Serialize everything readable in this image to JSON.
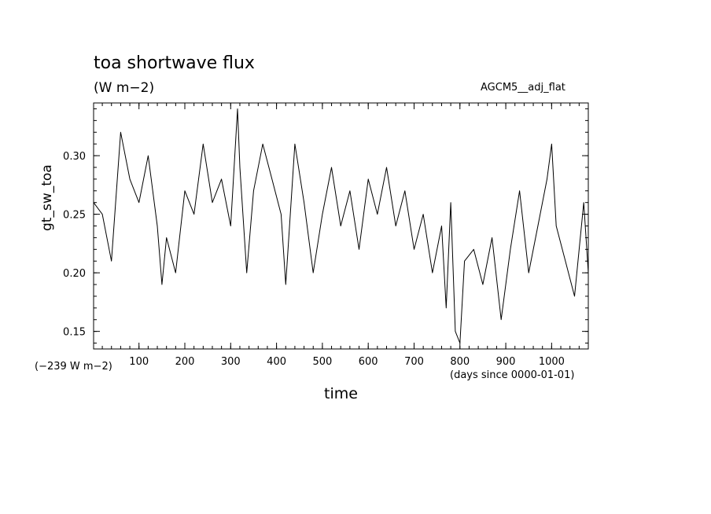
{
  "chart_data": {
    "type": "line",
    "title": "toa shortwave flux",
    "subtitle": "(W m−2)",
    "run_label": "AGCM5__adj_flat",
    "ylabel": "gt_sw_toa",
    "xlabel": "time",
    "x_units": "(days since 0000-01-01)",
    "y_offset_note": "(−239 W m−2)",
    "xlim": [
      1,
      1080
    ],
    "ylim": [
      0.135,
      0.345
    ],
    "x_ticks": [
      100,
      200,
      300,
      400,
      500,
      600,
      700,
      800,
      900,
      1000
    ],
    "x_tick_labels": [
      "100",
      "200",
      "300",
      "400",
      "500",
      "600",
      "700",
      "800",
      "900",
      "1000"
    ],
    "y_ticks": [
      0.15,
      0.2,
      0.25,
      0.3
    ],
    "y_tick_labels": [
      "0.15",
      "0.20",
      "0.25",
      "0.30"
    ],
    "grid": false,
    "series": [
      {
        "line_color": "#000000",
        "x": [
          1,
          20,
          40,
          60,
          80,
          100,
          120,
          140,
          150,
          160,
          180,
          200,
          220,
          240,
          260,
          280,
          300,
          315,
          320,
          335,
          350,
          370,
          390,
          410,
          420,
          440,
          460,
          480,
          500,
          520,
          540,
          560,
          580,
          600,
          620,
          640,
          660,
          680,
          700,
          720,
          740,
          760,
          770,
          780,
          790,
          800,
          810,
          830,
          850,
          870,
          890,
          910,
          930,
          950,
          970,
          990,
          1000,
          1010,
          1030,
          1050,
          1070,
          1080
        ],
        "y": [
          0.26,
          0.25,
          0.21,
          0.32,
          0.28,
          0.26,
          0.3,
          0.24,
          0.19,
          0.23,
          0.2,
          0.27,
          0.25,
          0.31,
          0.26,
          0.28,
          0.24,
          0.34,
          0.29,
          0.2,
          0.27,
          0.31,
          0.28,
          0.25,
          0.19,
          0.31,
          0.26,
          0.2,
          0.25,
          0.29,
          0.24,
          0.27,
          0.22,
          0.28,
          0.25,
          0.29,
          0.24,
          0.27,
          0.22,
          0.25,
          0.2,
          0.24,
          0.17,
          0.26,
          0.15,
          0.14,
          0.21,
          0.22,
          0.19,
          0.23,
          0.16,
          0.22,
          0.27,
          0.2,
          0.24,
          0.28,
          0.31,
          0.24,
          0.21,
          0.18,
          0.26,
          0.2
        ]
      }
    ]
  }
}
